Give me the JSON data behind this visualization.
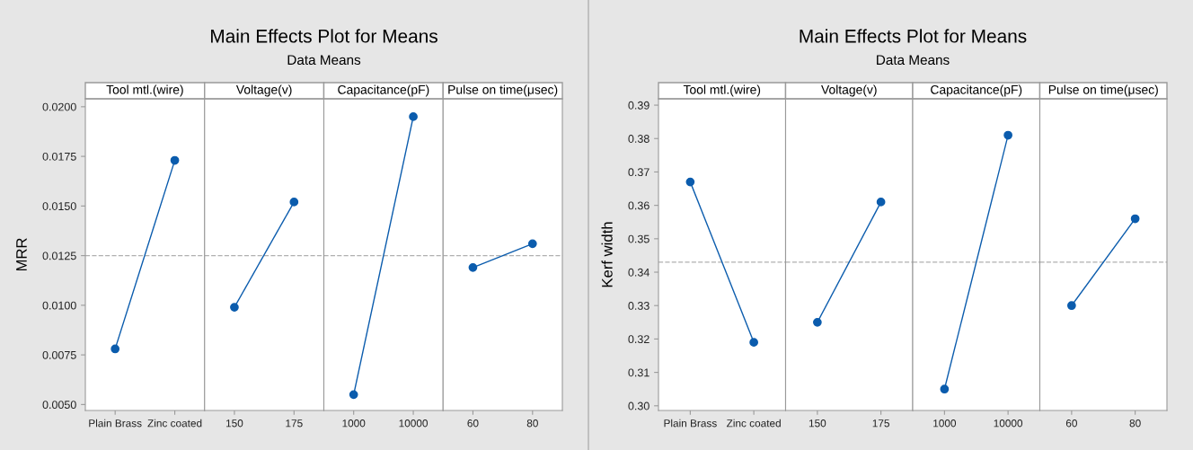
{
  "chart_data": [
    {
      "type": "line",
      "annotations": [
        "Main Effects Plot for Means",
        "Data Means"
      ],
      "title": "Tool mtl.(wire)",
      "ylabel": "MRR",
      "categories": [
        "Plain Brass",
        "Zinc coated"
      ],
      "series": [
        {
          "color": "#0b5cad",
          "values": [
            0.0078,
            0.0173
          ]
        }
      ],
      "ylim": [
        0.0047,
        0.0204
      ],
      "yticks": [
        {
          "value": 0.005,
          "label": "0.0050"
        },
        {
          "value": 0.0075,
          "label": "0.0075"
        },
        {
          "value": 0.01,
          "label": "0.0100"
        },
        {
          "value": 0.0125,
          "label": "0.0125"
        },
        {
          "value": 0.015,
          "label": "0.0150"
        },
        {
          "value": 0.0175,
          "label": "0.0175"
        },
        {
          "value": 0.02,
          "label": "0.0200"
        }
      ],
      "ref_lines": [
        {
          "axis": "y",
          "value": 0.0125,
          "color": "#b0b0b0",
          "line_style": "dashed"
        }
      ],
      "marker": "circle",
      "grid": false
    },
    {
      "type": "line",
      "title": "Voltage(v)",
      "categories": [
        "150",
        "175"
      ],
      "series": [
        {
          "color": "#0b5cad",
          "values": [
            0.0099,
            0.0152
          ]
        }
      ],
      "ylim": [
        0.0047,
        0.0204
      ],
      "tick_labels": "x",
      "ref_lines": [
        {
          "axis": "y",
          "value": 0.0125,
          "color": "#b0b0b0",
          "line_style": "dashed"
        }
      ],
      "marker": "circle",
      "grid": false
    },
    {
      "type": "line",
      "title": "Capacitance(pF)",
      "categories": [
        "1000",
        "10000"
      ],
      "series": [
        {
          "color": "#0b5cad",
          "values": [
            0.0055,
            0.0195
          ]
        }
      ],
      "ylim": [
        0.0047,
        0.0204
      ],
      "tick_labels": "x",
      "ref_lines": [
        {
          "axis": "y",
          "value": 0.0125,
          "color": "#b0b0b0",
          "line_style": "dashed"
        }
      ],
      "marker": "circle",
      "grid": false
    },
    {
      "type": "line",
      "title": "Pulse on time(μsec)",
      "categories": [
        "60",
        "80"
      ],
      "series": [
        {
          "color": "#0b5cad",
          "values": [
            0.0119,
            0.0131
          ]
        }
      ],
      "ylim": [
        0.0047,
        0.0204
      ],
      "tick_labels": "x",
      "ref_lines": [
        {
          "axis": "y",
          "value": 0.0125,
          "color": "#b0b0b0",
          "line_style": "dashed"
        }
      ],
      "marker": "circle",
      "grid": false
    },
    {
      "type": "line",
      "annotations": [
        "Main Effects Plot for Means",
        "Data Means"
      ],
      "title": "Tool mtl.(wire)",
      "ylabel": "Kerf width",
      "categories": [
        "Plain Brass",
        "Zinc coated"
      ],
      "series": [
        {
          "color": "#0b5cad",
          "values": [
            0.367,
            0.319
          ]
        }
      ],
      "ylim": [
        0.2986,
        0.3919
      ],
      "yticks": [
        {
          "value": 0.3,
          "label": "0.30"
        },
        0.31,
        0.32,
        0.33,
        0.34,
        0.35,
        0.36,
        0.37,
        0.38,
        0.39
      ],
      "ref_lines": [
        {
          "axis": "y",
          "value": 0.343,
          "color": "#b0b0b0",
          "line_style": "dashed"
        }
      ],
      "marker": "circle",
      "grid": false
    },
    {
      "type": "line",
      "title": "Voltage(v)",
      "categories": [
        "150",
        "175"
      ],
      "series": [
        {
          "color": "#0b5cad",
          "values": [
            0.325,
            0.361
          ]
        }
      ],
      "ylim": [
        0.2986,
        0.3919
      ],
      "tick_labels": "x",
      "ref_lines": [
        {
          "axis": "y",
          "value": 0.343,
          "color": "#b0b0b0",
          "line_style": "dashed"
        }
      ],
      "marker": "circle",
      "grid": false
    },
    {
      "type": "line",
      "title": "Capacitance(pF)",
      "categories": [
        "1000",
        "10000"
      ],
      "series": [
        {
          "color": "#0b5cad",
          "values": [
            0.305,
            0.381
          ]
        }
      ],
      "ylim": [
        0.2986,
        0.3919
      ],
      "tick_labels": "x",
      "ref_lines": [
        {
          "axis": "y",
          "value": 0.343,
          "color": "#b0b0b0",
          "line_style": "dashed"
        }
      ],
      "marker": "circle",
      "grid": false
    },
    {
      "type": "line",
      "title": "Pulse on time(μsec)",
      "categories": [
        "60",
        "80"
      ],
      "series": [
        {
          "color": "#0b5cad",
          "values": [
            0.33,
            0.356
          ]
        }
      ],
      "ylim": [
        0.2986,
        0.3919
      ],
      "tick_labels": "x",
      "ref_lines": [
        {
          "axis": "y",
          "value": 0.343,
          "color": "#b0b0b0",
          "line_style": "dashed"
        }
      ],
      "marker": "circle",
      "grid": false
    }
  ]
}
